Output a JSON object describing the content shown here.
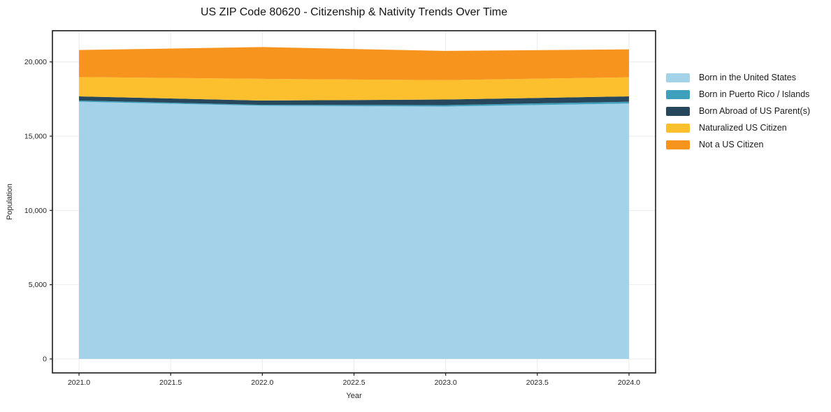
{
  "title": "US ZIP Code 80620 - Citizenship & Nativity Trends Over Time",
  "chart_data": {
    "type": "area",
    "stacked": true,
    "title": "US ZIP Code 80620 - Citizenship & Nativity Trends Over Time",
    "xlabel": "Year",
    "ylabel": "Population",
    "x": [
      2021,
      2022,
      2023,
      2024
    ],
    "series": [
      {
        "name": "Born in the United States",
        "color": "#A4D2E8",
        "values": [
          17320,
          17050,
          17000,
          17200
        ]
      },
      {
        "name": "Born in Puerto Rico / Islands",
        "color": "#3FA0BE",
        "values": [
          80,
          60,
          95,
          120
        ]
      },
      {
        "name": "Born Abroad of US Parent(s)",
        "color": "#27485C",
        "values": [
          280,
          290,
          375,
          360
        ]
      },
      {
        "name": "Naturalized US Citizen",
        "color": "#FCC02E",
        "values": [
          1300,
          1460,
          1305,
          1285
        ]
      },
      {
        "name": "Not a US Citizen",
        "color": "#F7941E",
        "values": [
          1820,
          2140,
          1965,
          1880
        ]
      }
    ],
    "stack_totals": [
      20800,
      21000,
      20740,
      20845
    ],
    "xticks": [
      2021.0,
      2021.5,
      2022.0,
      2022.5,
      2023.0,
      2023.5,
      2024.0
    ],
    "xtick_labels": [
      "2021.0",
      "2021.5",
      "2022.0",
      "2022.5",
      "2023.0",
      "2023.5",
      "2024.0"
    ],
    "yticks": [
      0,
      5000,
      10000,
      15000,
      20000
    ],
    "ytick_labels": [
      "0",
      "5,000",
      "10,000",
      "15,000",
      "20,000"
    ],
    "xlim": [
      2020.855,
      2024.145
    ],
    "ylim": [
      -940,
      22100
    ],
    "grid": true,
    "legend_position": "right of plot, frameless",
    "colors": {
      "grid": "#ebebeb",
      "spine": "#1a1a1a",
      "background": "#ffffff"
    }
  }
}
